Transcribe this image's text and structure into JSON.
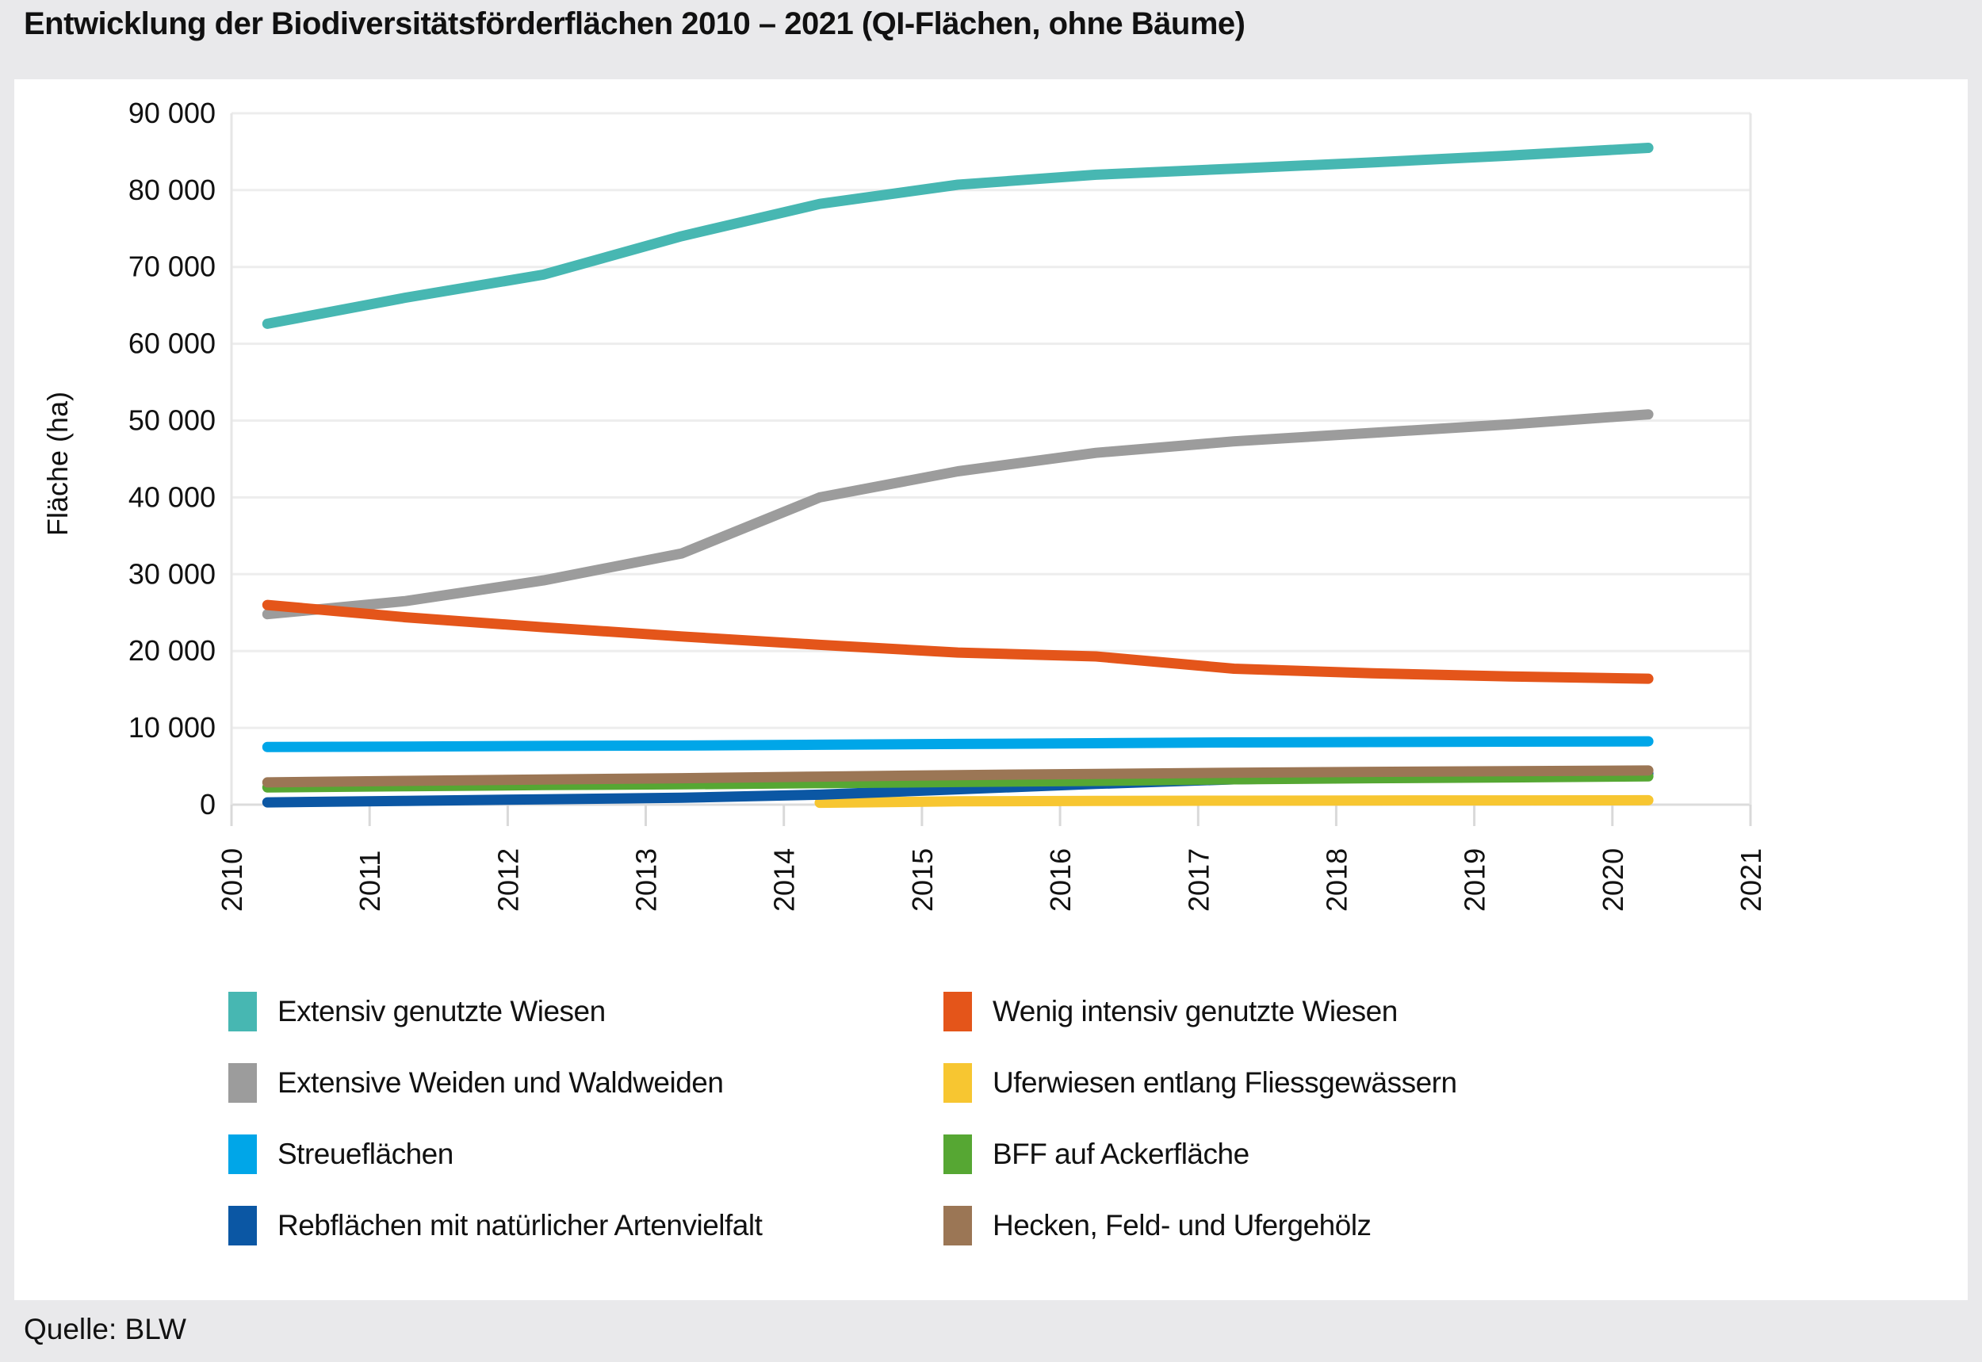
{
  "title": "Entwicklung der Biodiversitätsförderflächen 2010 – 2021 (QI-Flächen, ohne Bäume)",
  "source": "Quelle: BLW",
  "chart_data": {
    "type": "line",
    "title": "Entwicklung der Biodiversitätsförderflächen 2010 – 2021 (QI-Flächen, ohne Bäume)",
    "xlabel": "",
    "ylabel": "Fläche (ha)",
    "ylim": [
      0,
      90000
    ],
    "xlim": [
      2010,
      2021
    ],
    "grid": "horizontal",
    "legend_position": "bottom-two-columns",
    "x_ticks": [
      {
        "value": 2010,
        "label": "2010"
      },
      {
        "value": 2011,
        "label": "2011"
      },
      {
        "value": 2012,
        "label": "2012"
      },
      {
        "value": 2013,
        "label": "2013"
      },
      {
        "value": 2014,
        "label": "2014"
      },
      {
        "value": 2015,
        "label": "2015"
      },
      {
        "value": 2016,
        "label": "2016"
      },
      {
        "value": 2017,
        "label": "2017"
      },
      {
        "value": 2018,
        "label": "2018"
      },
      {
        "value": 2019,
        "label": "2019"
      },
      {
        "value": 2020,
        "label": "2020"
      },
      {
        "value": 2021,
        "label": "2021"
      }
    ],
    "y_ticks": [
      {
        "value": 0,
        "label": "0"
      },
      {
        "value": 10000,
        "label": "10 000"
      },
      {
        "value": 20000,
        "label": "20 000"
      },
      {
        "value": 30000,
        "label": "30 000"
      },
      {
        "value": 40000,
        "label": "40 000"
      },
      {
        "value": 50000,
        "label": "50 000"
      },
      {
        "value": 60000,
        "label": "60 000"
      },
      {
        "value": 70000,
        "label": "70 000"
      },
      {
        "value": 80000,
        "label": "80 000"
      },
      {
        "value": 90000,
        "label": "90 000"
      }
    ],
    "series": [
      {
        "name": "Extensiv genutzte Wiesen",
        "color": "#47b7b2",
        "start_year": 2010,
        "values": [
          62600,
          66000,
          69000,
          74000,
          78200,
          80700,
          82000,
          82800,
          83600,
          84500,
          85500
        ]
      },
      {
        "name": "Extensive Weiden und Waldweiden",
        "color": "#9c9c9c",
        "start_year": 2010,
        "values": [
          24800,
          26500,
          29200,
          32700,
          40000,
          43400,
          45800,
          47300,
          48400,
          49500,
          50800
        ]
      },
      {
        "name": "Wenig intensiv genutzte Wiesen",
        "color": "#e4551a",
        "start_year": 2010,
        "values": [
          26000,
          24400,
          23100,
          21900,
          20800,
          19800,
          19300,
          17700,
          17100,
          16700,
          16400
        ]
      },
      {
        "name": "Streueflächen",
        "color": "#00a6e8",
        "start_year": 2010,
        "values": [
          7500,
          7550,
          7650,
          7700,
          7800,
          7900,
          8000,
          8100,
          8150,
          8200,
          8250
        ]
      },
      {
        "name": "Uferwiesen entlang Fliessgewässern",
        "color": "#f7c631",
        "start_year": 2014,
        "values": [
          250,
          430,
          490,
          520,
          545,
          560,
          580
        ]
      },
      {
        "name": "Rebflächen mit natürlicher Artenvielfalt",
        "color": "#0b57a4",
        "start_year": 2010,
        "values": [
          300,
          500,
          700,
          900,
          1300,
          2000,
          2700,
          3300,
          3600,
          3850,
          4050
        ]
      },
      {
        "name": "BFF auf Ackerfläche",
        "color": "#56a733",
        "start_year": 2010,
        "values": [
          2250,
          2400,
          2550,
          2650,
          2800,
          2950,
          3100,
          3300,
          3450,
          3550,
          3680
        ]
      },
      {
        "name": "Hecken, Feld- und Ufergehölz",
        "color": "#9b7655",
        "start_year": 2010,
        "values": [
          2900,
          3100,
          3270,
          3450,
          3650,
          3850,
          4000,
          4150,
          4270,
          4370,
          4450
        ]
      }
    ],
    "legend": {
      "columns": [
        [
          0,
          1,
          3,
          5
        ],
        [
          2,
          4,
          6,
          7
        ]
      ]
    }
  }
}
